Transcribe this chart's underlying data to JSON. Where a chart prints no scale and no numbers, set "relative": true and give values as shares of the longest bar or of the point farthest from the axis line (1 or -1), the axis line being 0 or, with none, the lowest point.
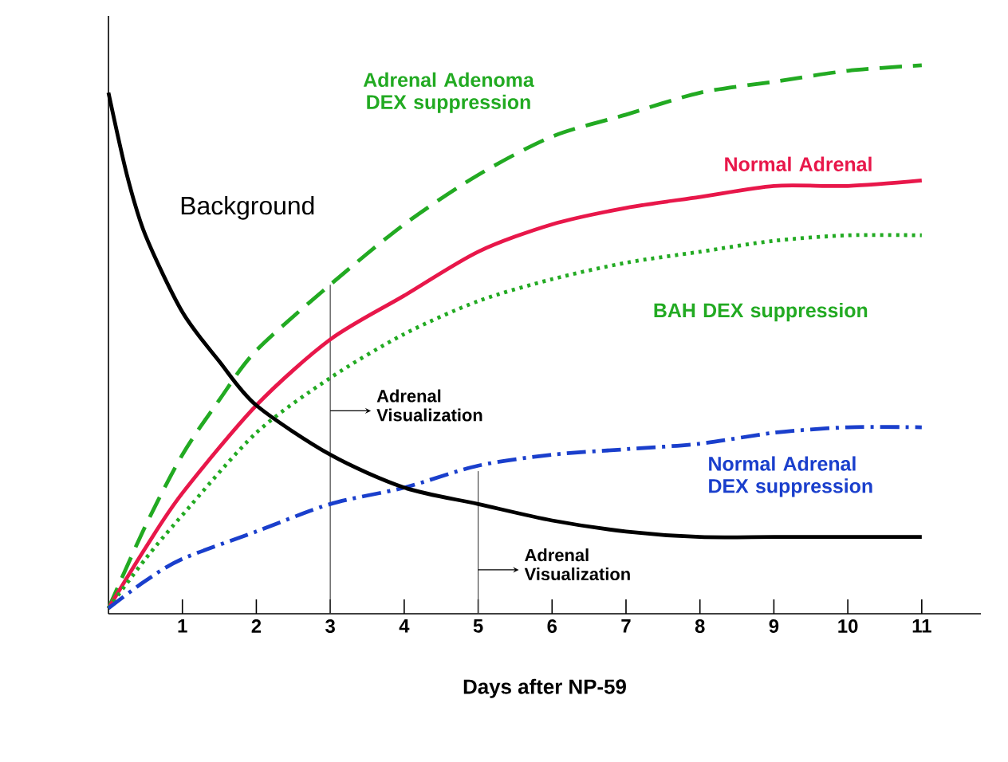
{
  "chart_data": {
    "type": "line",
    "xlabel": "Days after NP-59",
    "relative": true,
    "tick_labels": "x",
    "marker": "none",
    "xlim": [
      0,
      11.8
    ],
    "xticks": [
      1,
      2,
      3,
      4,
      5,
      6,
      7,
      8,
      9,
      10,
      11
    ],
    "series": [
      {
        "name": "Adrenal Adenoma DEX suppression",
        "color": "#22aa22",
        "line_style": "dashed",
        "x": [
          0,
          0.5,
          1,
          1.5,
          2,
          3,
          4,
          5,
          6,
          7,
          8,
          9,
          10,
          11
        ],
        "values": [
          0.01,
          0.16,
          0.29,
          0.39,
          0.48,
          0.6,
          0.71,
          0.8,
          0.87,
          0.91,
          0.95,
          0.97,
          0.99,
          1.0
        ]
      },
      {
        "name": "Normal Adrenal",
        "color": "#e8174a",
        "line_style": "solid",
        "x": [
          0,
          0.5,
          1,
          2,
          3,
          4,
          5,
          6,
          7,
          8,
          9,
          10,
          11
        ],
        "values": [
          0.01,
          0.12,
          0.22,
          0.38,
          0.5,
          0.58,
          0.66,
          0.71,
          0.74,
          0.76,
          0.78,
          0.78,
          0.79
        ]
      },
      {
        "name": "BAH DEX suppression",
        "color": "#22aa22",
        "line_style": "dotted",
        "x": [
          0,
          0.5,
          1,
          2,
          3,
          4,
          5,
          6,
          7,
          8,
          9,
          10,
          11
        ],
        "values": [
          0.01,
          0.1,
          0.18,
          0.33,
          0.43,
          0.51,
          0.57,
          0.61,
          0.64,
          0.66,
          0.68,
          0.69,
          0.69
        ]
      },
      {
        "name": "Normal Adrenal DEX suppression",
        "color": "#1a3fcc",
        "line_style": "dashdot",
        "x": [
          0,
          0.5,
          1,
          2,
          3,
          4,
          5,
          6,
          7,
          8,
          9,
          10,
          11
        ],
        "values": [
          0.01,
          0.06,
          0.1,
          0.15,
          0.2,
          0.23,
          0.27,
          0.29,
          0.3,
          0.31,
          0.33,
          0.34,
          0.34
        ]
      },
      {
        "name": "Background",
        "color": "#000000",
        "line_style": "solid",
        "x": [
          0,
          0.25,
          0.5,
          1,
          1.5,
          2,
          3,
          4,
          5,
          6,
          7,
          8,
          9,
          10,
          11
        ],
        "values": [
          0.95,
          0.8,
          0.69,
          0.55,
          0.46,
          0.38,
          0.29,
          0.23,
          0.2,
          0.17,
          0.15,
          0.14,
          0.14,
          0.14,
          0.14
        ]
      }
    ],
    "ref_lines": [
      {
        "axis": "x",
        "value": 3,
        "label": "Adrenal Visualization",
        "color": "#444444"
      },
      {
        "axis": "x",
        "value": 5,
        "label": "Adrenal Visualization",
        "color": "#444444"
      }
    ]
  }
}
